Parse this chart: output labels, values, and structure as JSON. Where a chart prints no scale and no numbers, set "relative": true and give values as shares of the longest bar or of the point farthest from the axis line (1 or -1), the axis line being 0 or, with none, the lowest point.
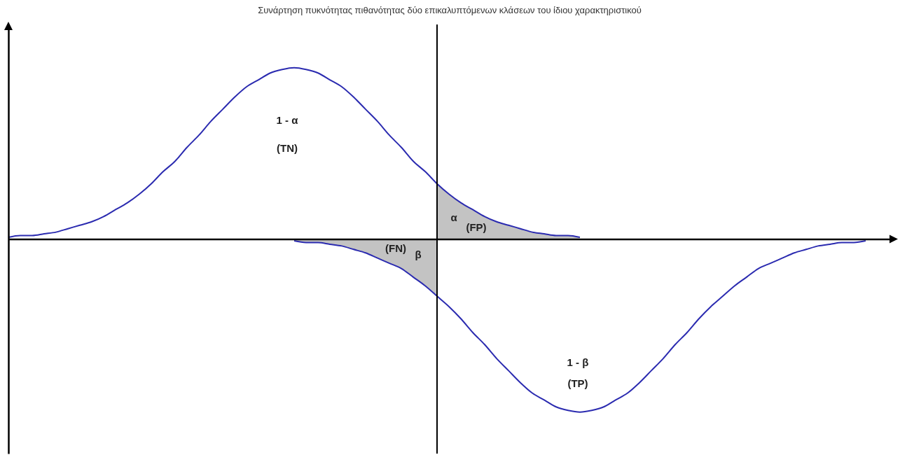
{
  "chart_data": {
    "type": "line",
    "title": "Συνάρτηση πυκνότητας πιθανότητας δύο επικαλυπτόμενων κλάσεων του ίδιου χαρακτηριστικού",
    "relative": true,
    "categories": [
      null,
      null,
      null,
      null,
      null,
      null,
      null,
      null,
      null,
      null,
      null,
      null,
      null,
      null,
      null,
      null,
      null,
      null,
      null,
      null,
      null,
      null,
      null,
      null,
      null,
      null,
      null,
      null,
      null,
      null,
      null,
      null,
      null,
      null,
      null,
      null,
      null,
      null,
      null,
      null,
      null,
      null,
      null,
      null,
      null,
      null,
      null,
      null,
      null,
      null,
      null,
      null,
      null,
      null,
      null,
      null,
      null,
      null,
      null,
      null,
      null,
      null,
      null,
      null,
      null,
      null,
      null,
      null,
      null,
      null,
      null,
      null,
      null,
      null,
      null
    ],
    "series": [
      {
        "type": "area",
        "color": "#c3c3c3",
        "values": [
          null,
          null,
          null,
          null,
          null,
          null,
          null,
          null,
          null,
          null,
          null,
          null,
          null,
          null,
          null,
          null,
          null,
          null,
          null,
          null,
          null,
          null,
          null,
          null,
          null,
          null,
          null,
          null,
          null,
          null,
          null,
          null,
          null,
          null,
          null,
          null,
          0.32,
          0.26,
          0.21,
          0.17,
          0.13,
          0.1,
          0.08,
          0.06,
          0.04,
          0.03,
          0.02,
          0.02,
          0.01,
          null,
          null,
          null,
          null,
          null,
          null,
          null,
          null,
          null,
          null,
          null,
          null,
          null,
          null,
          null,
          null,
          null,
          null,
          null,
          null,
          null,
          null,
          null,
          null,
          null,
          null
        ]
      },
      {
        "type": "area",
        "color": "#c3c3c3",
        "values": [
          null,
          null,
          null,
          null,
          null,
          null,
          null,
          null,
          null,
          null,
          null,
          null,
          null,
          null,
          null,
          null,
          null,
          null,
          null,
          null,
          null,
          null,
          null,
          null,
          -0.01,
          -0.02,
          -0.02,
          -0.03,
          -0.04,
          -0.06,
          -0.08,
          -0.11,
          -0.14,
          -0.17,
          -0.22,
          -0.27,
          -0.33,
          null,
          null,
          null,
          null,
          null,
          null,
          null,
          null,
          null,
          null,
          null,
          null,
          null,
          null,
          null,
          null,
          null,
          null,
          null,
          null,
          null,
          null,
          null,
          null,
          null,
          null,
          null,
          null,
          null,
          null,
          null,
          null,
          null,
          null,
          null,
          null,
          null,
          null
        ]
      },
      {
        "color": "#2b2bb0",
        "values": [
          0.01,
          0.02,
          0.02,
          0.03,
          0.04,
          0.06,
          0.08,
          0.1,
          0.13,
          0.17,
          0.21,
          0.26,
          0.32,
          0.39,
          0.45,
          0.53,
          0.6,
          0.68,
          0.75,
          0.82,
          0.88,
          0.92,
          0.96,
          0.98,
          0.99,
          0.98,
          0.96,
          0.92,
          0.88,
          0.82,
          0.75,
          0.68,
          0.6,
          0.53,
          0.45,
          0.39,
          0.32,
          0.26,
          0.21,
          0.17,
          0.13,
          0.1,
          0.08,
          0.06,
          0.04,
          0.03,
          0.02,
          0.02,
          0.01,
          null,
          null,
          null,
          null,
          null,
          null,
          null,
          null,
          null,
          null,
          null,
          null,
          null,
          null,
          null,
          null,
          null,
          null,
          null,
          null,
          null,
          null,
          null,
          null,
          null,
          null
        ]
      },
      {
        "color": "#2b2bb0",
        "values": [
          null,
          null,
          null,
          null,
          null,
          null,
          null,
          null,
          null,
          null,
          null,
          null,
          null,
          null,
          null,
          null,
          null,
          null,
          null,
          null,
          null,
          null,
          null,
          null,
          -0.01,
          -0.02,
          -0.02,
          -0.03,
          -0.04,
          -0.06,
          -0.08,
          -0.11,
          -0.14,
          -0.17,
          -0.22,
          -0.27,
          -0.33,
          -0.39,
          -0.46,
          -0.54,
          -0.61,
          -0.69,
          -0.76,
          -0.83,
          -0.89,
          -0.93,
          -0.97,
          -0.99,
          -1.0,
          -0.99,
          -0.97,
          -0.93,
          -0.89,
          -0.83,
          -0.76,
          -0.69,
          -0.61,
          -0.54,
          -0.46,
          -0.39,
          -0.33,
          -0.27,
          -0.22,
          -0.17,
          -0.14,
          -0.11,
          -0.08,
          -0.06,
          -0.04,
          -0.03,
          -0.02,
          -0.02,
          -0.01,
          null,
          null
        ]
      }
    ],
    "annotations": [
      "1 - α",
      "(TN)",
      "α",
      "(FP)",
      "(FN)",
      "β",
      "1 - β",
      "(TP)"
    ]
  }
}
